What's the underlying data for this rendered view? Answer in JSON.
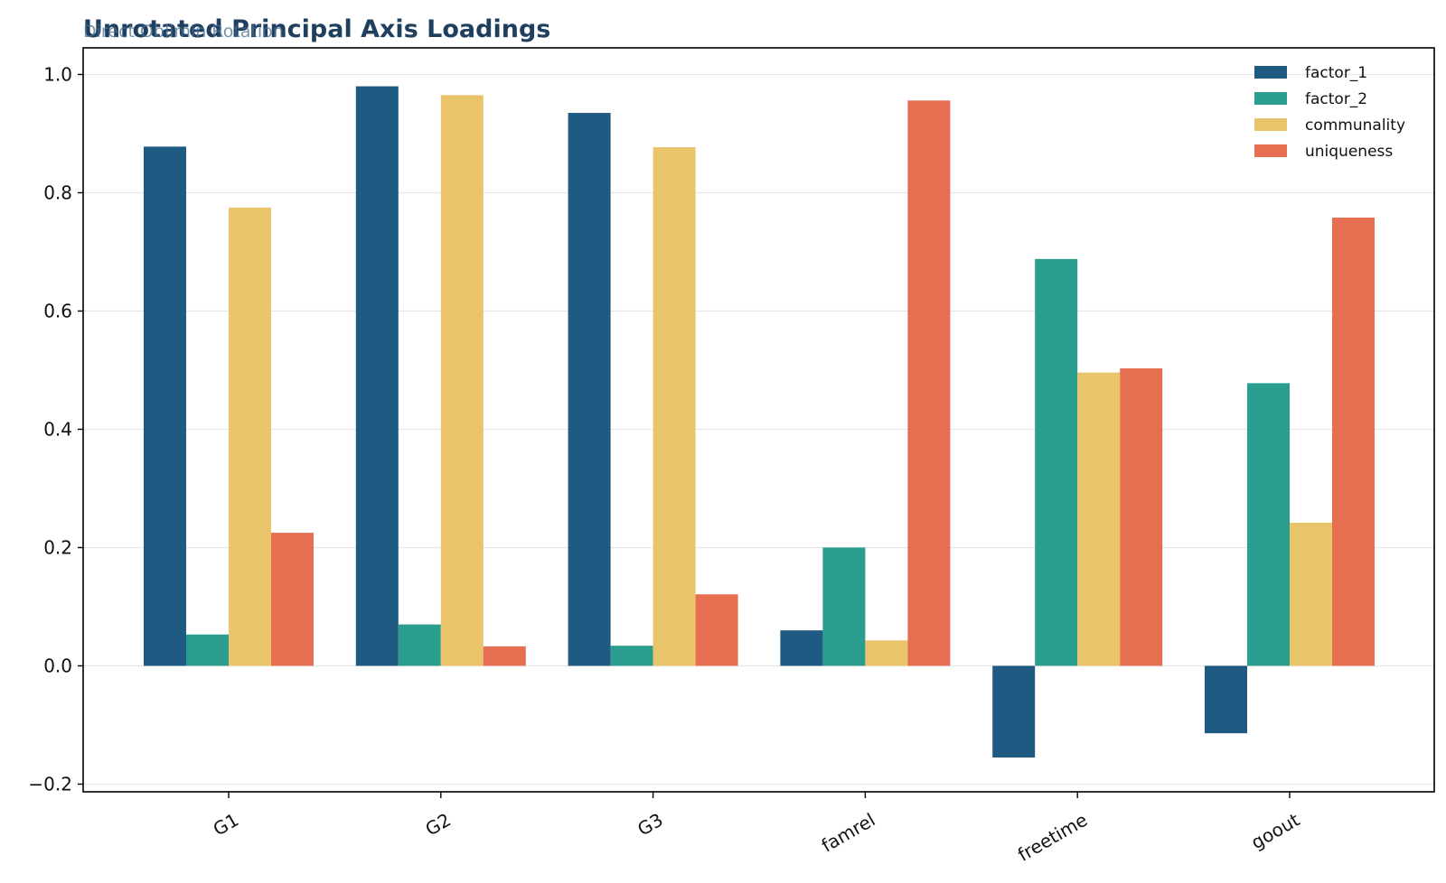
{
  "colors": {
    "title": "#1f3f5f",
    "subtitle": "#4a6f8f",
    "factor_1": "#1f5a82",
    "factor_2": "#2a9d8f",
    "communality": "#e9c46a",
    "uniqueness": "#e76f51",
    "grid": "#e6e6e6",
    "axis": "#000000"
  },
  "chart_data": {
    "type": "bar",
    "title": "Unrotated Principal Axis Loadings",
    "subtitle": "Direct Oblimin Rotation",
    "xlabel": "",
    "ylabel": "",
    "categories": [
      "G1",
      "G2",
      "G3",
      "famrel",
      "freetime",
      "goout"
    ],
    "series": [
      {
        "name": "factor_1",
        "values": [
          0.878,
          0.98,
          0.935,
          0.06,
          -0.155,
          -0.114
        ]
      },
      {
        "name": "factor_2",
        "values": [
          0.053,
          0.07,
          0.034,
          0.2,
          0.688,
          0.478
        ]
      },
      {
        "name": "communality",
        "values": [
          0.775,
          0.965,
          0.877,
          0.043,
          0.496,
          0.242
        ]
      },
      {
        "name": "uniqueness",
        "values": [
          0.225,
          0.033,
          0.121,
          0.956,
          0.503,
          0.758
        ]
      }
    ],
    "ylim": [
      -0.213,
      1.045
    ],
    "yticks": [
      -0.2,
      0.0,
      0.2,
      0.4,
      0.6,
      0.8,
      1.0
    ],
    "ytick_labels": [
      "−0.2",
      "0.0",
      "0.2",
      "0.4",
      "0.6",
      "0.8",
      "1.0"
    ],
    "grid": true,
    "legend_position": "top-right"
  }
}
